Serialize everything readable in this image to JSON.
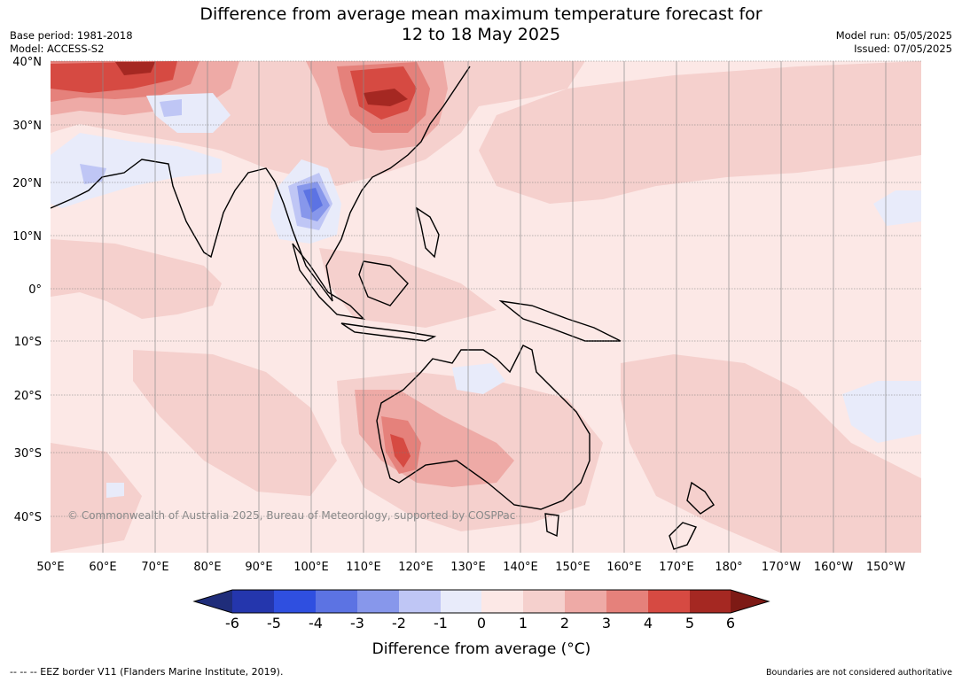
{
  "title": {
    "line1": "Difference from average mean maximum temperature forecast for",
    "line2": "12 to 18 May 2025"
  },
  "meta": {
    "base_period": "Base period: 1981-2018",
    "model": "Model: ACCESS-S2",
    "model_run": "Model run: 05/05/2025",
    "issued": "Issued: 07/05/2025"
  },
  "map": {
    "lat_labels": [
      "40°N",
      "30°N",
      "20°N",
      "10°N",
      "0°",
      "10°S",
      "20°S",
      "30°S",
      "40°S"
    ],
    "lon_labels": [
      "50°E",
      "60°E",
      "70°E",
      "80°E",
      "90°E",
      "100°E",
      "110°E",
      "120°E",
      "130°E",
      "140°E",
      "150°E",
      "160°E",
      "170°E",
      "180°",
      "170°W",
      "160°W",
      "150°W"
    ],
    "copyright": "© Commonwealth of Australia 2025, Bureau of Meteorology, supported by COSPPac"
  },
  "colorbar": {
    "ticks": [
      "-6",
      "-5",
      "-4",
      "-3",
      "-2",
      "-1",
      "0",
      "1",
      "2",
      "3",
      "4",
      "5",
      "6"
    ],
    "colors": [
      "#1f2d7a",
      "#2436ad",
      "#2f4fe0",
      "#5c73e3",
      "#8797eb",
      "#bfc6f5",
      "#e8ebfa",
      "#fce8e6",
      "#f5d0cd",
      "#eeaaa6",
      "#e5817b",
      "#d64a42",
      "#a52822",
      "#7d1a15"
    ],
    "title": "Difference from average (°C)"
  },
  "footer": {
    "left": "--  --  -- EEZ border V11 (Flanders Marine Institute, 2019).",
    "right": "Boundaries are not considered authoritative"
  }
}
